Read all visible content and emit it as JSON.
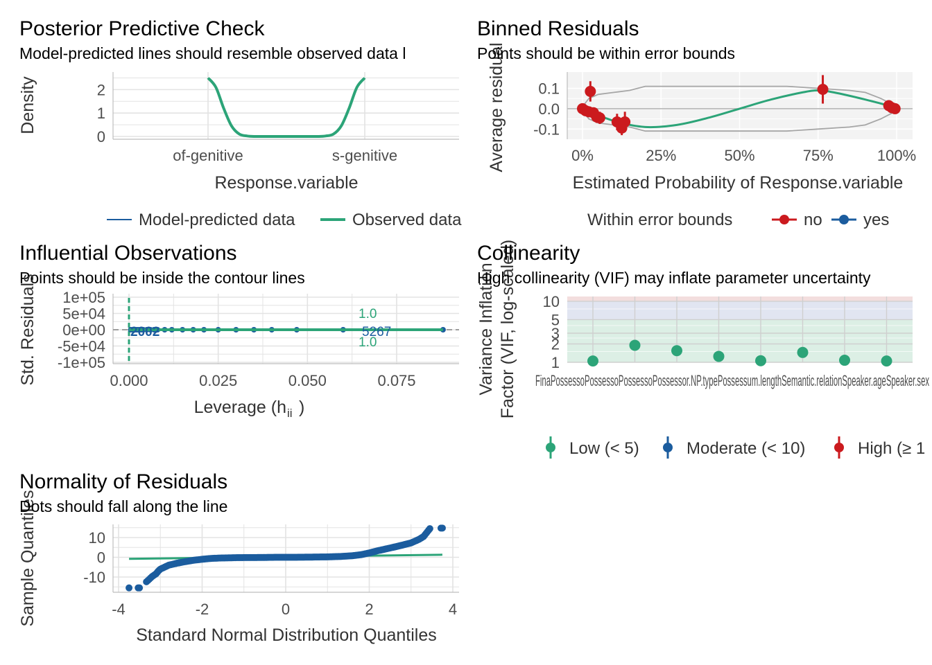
{
  "colors": {
    "green": "#2ca478",
    "blue": "#1b5c9e",
    "red": "#cb1a1e",
    "grey": "#a6a6a6",
    "grid": "#e3e3e3",
    "bin_panel_bg": "#f3f3f3",
    "zone_low": "#dcefe5",
    "zone_moderate": "#e1e5f1",
    "zone_high": "#f3dede"
  },
  "chart_data": [
    {
      "id": "ppc",
      "type": "line",
      "title": "Posterior Predictive Check",
      "subtitle": "Model-predicted lines should resemble observed data l",
      "xlabel": "Response.variable",
      "ylabel": "Density",
      "x_tick_labels": [
        "of-genitive",
        "s-genitive"
      ],
      "y_ticks": [
        0,
        1,
        2
      ],
      "ylim": [
        0,
        2.75
      ],
      "legend_position": "bottom",
      "legend": [
        {
          "label": "Model-predicted data",
          "color": "#1b5c9e"
        },
        {
          "label": "Observed data",
          "color": "#2ca478"
        }
      ],
      "observed_curve": {
        "x": [
          0.0,
          0.05,
          0.1,
          0.15,
          0.2,
          0.25,
          0.3,
          0.35,
          0.4,
          0.5,
          0.6,
          0.65,
          0.7,
          0.75,
          0.8,
          0.85,
          0.9,
          0.95,
          1.0
        ],
        "y": [
          2.5,
          2.1,
          1.2,
          0.45,
          0.1,
          0.02,
          0.0,
          0.0,
          0.0,
          0.0,
          0.0,
          0.0,
          0.0,
          0.02,
          0.1,
          0.45,
          1.2,
          2.1,
          2.5
        ]
      }
    },
    {
      "id": "binned",
      "type": "scatter",
      "title": "Binned Residuals",
      "subtitle": "Points should be within error bounds",
      "xlabel": "Estimated Probability of Response.variable",
      "ylabel": "Average residual",
      "x_ticks": [
        "0%",
        "25%",
        "50%",
        "75%",
        "100%"
      ],
      "y_ticks": [
        "-0.1",
        "0.0",
        "0.1"
      ],
      "xlim": [
        -0.02,
        1.03
      ],
      "ylim": [
        -0.15,
        0.18
      ],
      "legend_title": "Within error bounds",
      "legend": [
        {
          "label": "no",
          "color": "#cb1a1e"
        },
        {
          "label": "yes",
          "color": "#1b5c9e"
        }
      ],
      "points": [
        {
          "x": 0.0,
          "y": 0.0,
          "err": 0.01
        },
        {
          "x": 0.01,
          "y": -0.01,
          "err": 0.015
        },
        {
          "x": 0.02,
          "y": -0.015,
          "err": 0.02
        },
        {
          "x": 0.025,
          "y": 0.085,
          "err": 0.05
        },
        {
          "x": 0.035,
          "y": -0.02,
          "err": 0.025
        },
        {
          "x": 0.045,
          "y": -0.04,
          "err": 0.03
        },
        {
          "x": 0.055,
          "y": -0.045,
          "err": 0.03
        },
        {
          "x": 0.11,
          "y": -0.065,
          "err": 0.04
        },
        {
          "x": 0.125,
          "y": -0.095,
          "err": 0.035
        },
        {
          "x": 0.135,
          "y": -0.065,
          "err": 0.05
        },
        {
          "x": 0.765,
          "y": 0.095,
          "err": 0.07
        },
        {
          "x": 0.975,
          "y": 0.015,
          "err": 0.01
        },
        {
          "x": 0.985,
          "y": 0.005,
          "err": 0.01
        },
        {
          "x": 0.995,
          "y": 0.0,
          "err": 0.01
        }
      ],
      "fit_line": {
        "x": [
          0.0,
          0.1,
          0.2,
          0.3,
          0.4,
          0.5,
          0.6,
          0.7,
          0.75,
          0.8,
          0.9,
          1.0
        ],
        "y": [
          0.0,
          -0.06,
          -0.09,
          -0.08,
          -0.045,
          0.0,
          0.045,
          0.08,
          0.09,
          0.08,
          0.045,
          0.005
        ]
      },
      "upper_bound": {
        "x": [
          0.0,
          0.02,
          0.05,
          0.1,
          0.15,
          0.2,
          0.3,
          0.5,
          0.65,
          0.75,
          0.85,
          0.9,
          0.95,
          1.0
        ],
        "y": [
          0.01,
          0.05,
          0.07,
          0.08,
          0.09,
          0.11,
          0.11,
          0.11,
          0.11,
          0.1,
          0.09,
          0.08,
          0.05,
          0.01
        ]
      },
      "lower_bound": {
        "x": [
          0.0,
          0.02,
          0.05,
          0.1,
          0.15,
          0.2,
          0.3,
          0.5,
          0.65,
          0.75,
          0.85,
          0.9,
          0.95,
          1.0
        ],
        "y": [
          -0.01,
          -0.05,
          -0.07,
          -0.08,
          -0.09,
          -0.11,
          -0.11,
          -0.11,
          -0.11,
          -0.1,
          -0.09,
          -0.08,
          -0.05,
          -0.01
        ]
      }
    },
    {
      "id": "influential",
      "type": "scatter",
      "title": "Influential Observations",
      "subtitle": "Points should be inside the contour lines",
      "xlabel_main": "Leverage (h",
      "xlabel_sub": "ii",
      "xlabel_close": ")",
      "ylabel": "Std. Residuals",
      "x_ticks": [
        "0.000",
        "0.025",
        "0.050",
        "0.075"
      ],
      "y_ticks": [
        "1e+05",
        "5e+04",
        "0e+00",
        "-5e+04",
        "-1e+05"
      ],
      "xlim": [
        -0.004,
        0.091
      ],
      "ylim": [
        -110000,
        110000
      ],
      "contour_labels": [
        "1.0",
        "1.0"
      ],
      "point_labels": [
        "2002",
        "5267"
      ],
      "points": [
        {
          "x": 0.0005,
          "y": 0
        },
        {
          "x": 0.001,
          "y": 0
        },
        {
          "x": 0.0015,
          "y": 0
        },
        {
          "x": 0.002,
          "y": 0
        },
        {
          "x": 0.0025,
          "y": 0
        },
        {
          "x": 0.003,
          "y": 0
        },
        {
          "x": 0.0035,
          "y": 0
        },
        {
          "x": 0.004,
          "y": 0
        },
        {
          "x": 0.005,
          "y": 0
        },
        {
          "x": 0.006,
          "y": 0
        },
        {
          "x": 0.007,
          "y": 0
        },
        {
          "x": 0.008,
          "y": 0
        },
        {
          "x": 0.01,
          "y": 0
        },
        {
          "x": 0.012,
          "y": 0
        },
        {
          "x": 0.015,
          "y": 0
        },
        {
          "x": 0.018,
          "y": 0
        },
        {
          "x": 0.021,
          "y": 0
        },
        {
          "x": 0.025,
          "y": 0
        },
        {
          "x": 0.03,
          "y": 0
        },
        {
          "x": 0.035,
          "y": 0
        },
        {
          "x": 0.04,
          "y": 0
        },
        {
          "x": 0.047,
          "y": 0
        },
        {
          "x": 0.06,
          "y": 0
        },
        {
          "x": 0.088,
          "y": 0
        }
      ],
      "fit_line": {
        "x": [
          0.0,
          0.088
        ],
        "y": [
          0,
          0
        ]
      }
    },
    {
      "id": "collinearity",
      "type": "scatter",
      "title": "Collinearity",
      "subtitle": "High collinearity (VIF) may inflate parameter uncertainty",
      "ylabel_line1": "Variance Inflation",
      "ylabel_line2": "Factor (VIF, log-scaled)",
      "y_ticks": [
        1,
        2,
        3,
        5,
        10
      ],
      "ylim": [
        1,
        12
      ],
      "log_scale": true,
      "x_tick_labels": [
        "Final.sibilant",
        "Possessor.animacy",
        "Possessor.length",
        "Possessor.NP.type",
        "Possessum.length",
        "Semantic.relation",
        "Speaker.age",
        "Speaker.sex"
      ],
      "x_tick_text": "FinaPossessoPossessoPossessoPossessor.NP.typePossessum.lengthSemantic.relationSpeaker.ageSpeaker.sex",
      "vif": [
        1.05,
        1.9,
        1.55,
        1.25,
        1.06,
        1.45,
        1.08,
        1.05
      ],
      "legend": [
        {
          "label": "Low (< 5)",
          "color": "#2ca478"
        },
        {
          "label": "Moderate (< 10)",
          "color": "#1b5c9e"
        },
        {
          "label": "High (≥ 1",
          "color": "#cb1a1e"
        }
      ]
    },
    {
      "id": "normality",
      "type": "scatter",
      "title": "Normality of Residuals",
      "subtitle": "Dots should fall along the line",
      "xlabel": "Standard Normal Distribution Quantiles",
      "ylabel": "Sample Quantiles",
      "x_ticks": [
        -4,
        -2,
        0,
        2,
        4
      ],
      "y_ticks": [
        "10",
        "0",
        "-10"
      ],
      "xlim": [
        -4.2,
        4.2
      ],
      "ylim": [
        -17,
        17
      ],
      "reference_line": {
        "x": [
          -3.75,
          3.75
        ],
        "y": [
          -0.8,
          1.3
        ]
      },
      "qq_points": {
        "x": [
          -3.75,
          -3.5,
          -3.3,
          -3.2,
          -3.1,
          -3.05,
          -3.0,
          -2.9,
          -2.8,
          -2.6,
          -2.4,
          -2.2,
          -2.0,
          -1.8,
          -1.6,
          -1.4,
          -1.2,
          -1.0,
          -0.6,
          -0.2,
          0.2,
          0.6,
          1.0,
          1.3,
          1.6,
          1.8,
          2.0,
          2.2,
          2.5,
          2.8,
          3.0,
          3.1,
          3.2,
          3.3,
          3.45,
          3.75
        ],
        "y": [
          -15.5,
          -15.5,
          -11.8,
          -9.8,
          -8.3,
          -7.0,
          -6.0,
          -5.0,
          -4.0,
          -3.0,
          -2.2,
          -1.5,
          -1.0,
          -0.6,
          -0.4,
          -0.3,
          -0.2,
          -0.15,
          -0.1,
          0.0,
          0.0,
          0.1,
          0.2,
          0.4,
          0.8,
          1.3,
          2.2,
          3.3,
          4.7,
          6.2,
          7.3,
          8.2,
          9.2,
          10.5,
          14.5,
          14.8
        ]
      }
    }
  ]
}
